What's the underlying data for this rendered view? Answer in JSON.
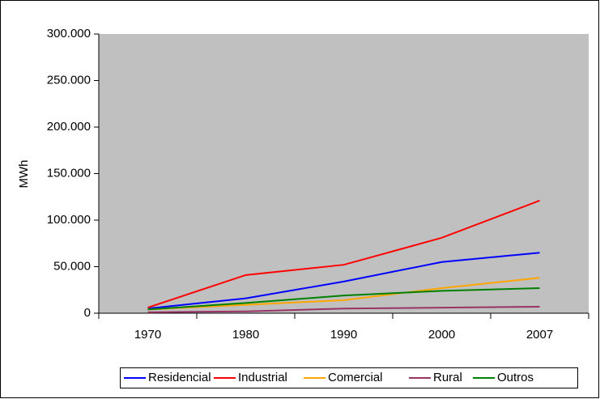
{
  "chart_data": {
    "type": "line",
    "y_label": "MWh",
    "categories": [
      "1970",
      "1980",
      "1990",
      "2000",
      "2007"
    ],
    "series": [
      {
        "name": "Residencial",
        "color": "#0000ff",
        "values": [
          5000,
          16000,
          34000,
          55000,
          65000
        ]
      },
      {
        "name": "Industrial",
        "color": "#ff0000",
        "values": [
          6000,
          41000,
          52000,
          81000,
          121000
        ]
      },
      {
        "name": "Comercial",
        "color": "#ffa500",
        "values": [
          4000,
          9000,
          14000,
          27000,
          38000
        ]
      },
      {
        "name": "Rural",
        "color": "#993366",
        "values": [
          1000,
          2000,
          5000,
          6000,
          7000
        ]
      },
      {
        "name": "Outros",
        "color": "#008000",
        "values": [
          4000,
          11000,
          19000,
          24000,
          27000
        ]
      }
    ],
    "ylim": [
      0,
      300000
    ],
    "yticks": [
      0,
      {
        "value": 50000,
        "label": "50.000"
      },
      {
        "value": 100000,
        "label": "100.000"
      },
      {
        "value": 150000,
        "label": "150.000"
      },
      {
        "value": 200000,
        "label": "200.000"
      },
      {
        "value": 250000,
        "label": "250.000"
      },
      {
        "value": 300000,
        "label": "300.000"
      }
    ],
    "plot_background": "#c0c0c0",
    "legend": "bottom"
  }
}
